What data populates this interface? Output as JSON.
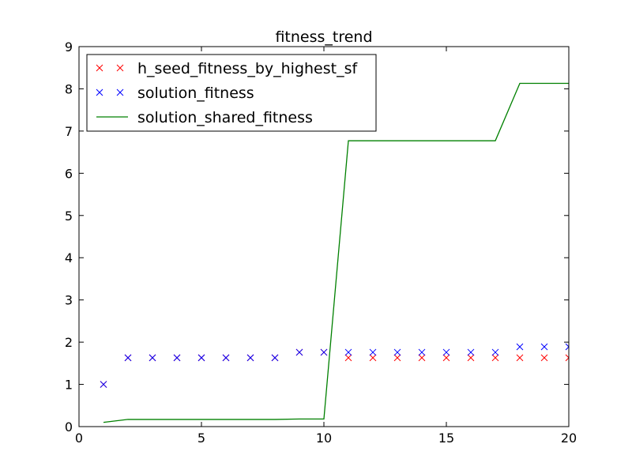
{
  "chart_data": {
    "type": "scatter",
    "title": "fitness_trend",
    "xlabel": "",
    "ylabel": "",
    "xlim": [
      0,
      20
    ],
    "ylim": [
      0,
      9
    ],
    "xticks": [
      0,
      5,
      10,
      15,
      20
    ],
    "yticks": [
      0,
      1,
      2,
      3,
      4,
      5,
      6,
      7,
      8,
      9
    ],
    "grid": false,
    "legend_position": "upper-left",
    "series": [
      {
        "name": "h_seed_fitness_by_highest_sf",
        "kind": "marker-x",
        "color": "#ff0000",
        "x": [
          1,
          2,
          3,
          4,
          5,
          6,
          7,
          8,
          9,
          10,
          11,
          12,
          13,
          14,
          15,
          16,
          17,
          18,
          19,
          20
        ],
        "y": [
          1.0,
          1.63,
          1.63,
          1.63,
          1.63,
          1.63,
          1.63,
          1.63,
          1.76,
          1.76,
          1.63,
          1.63,
          1.63,
          1.63,
          1.63,
          1.63,
          1.63,
          1.63,
          1.63,
          1.63
        ]
      },
      {
        "name": "solution_fitness",
        "kind": "marker-x",
        "color": "#0000ff",
        "x": [
          1,
          2,
          3,
          4,
          5,
          6,
          7,
          8,
          9,
          10,
          11,
          12,
          13,
          14,
          15,
          16,
          17,
          18,
          19,
          20
        ],
        "y": [
          1.0,
          1.63,
          1.63,
          1.63,
          1.63,
          1.63,
          1.63,
          1.63,
          1.76,
          1.76,
          1.76,
          1.76,
          1.76,
          1.76,
          1.76,
          1.76,
          1.76,
          1.89,
          1.89,
          1.89
        ]
      },
      {
        "name": "solution_shared_fitness",
        "kind": "line",
        "color": "#008000",
        "x": [
          1,
          2,
          3,
          4,
          5,
          6,
          7,
          8,
          9,
          10,
          11,
          12,
          13,
          14,
          15,
          16,
          17,
          18,
          19,
          20
        ],
        "y": [
          0.1,
          0.17,
          0.17,
          0.17,
          0.17,
          0.17,
          0.17,
          0.17,
          0.18,
          0.18,
          6.77,
          6.77,
          6.77,
          6.77,
          6.77,
          6.77,
          6.77,
          8.13,
          8.13,
          8.13
        ]
      }
    ]
  }
}
